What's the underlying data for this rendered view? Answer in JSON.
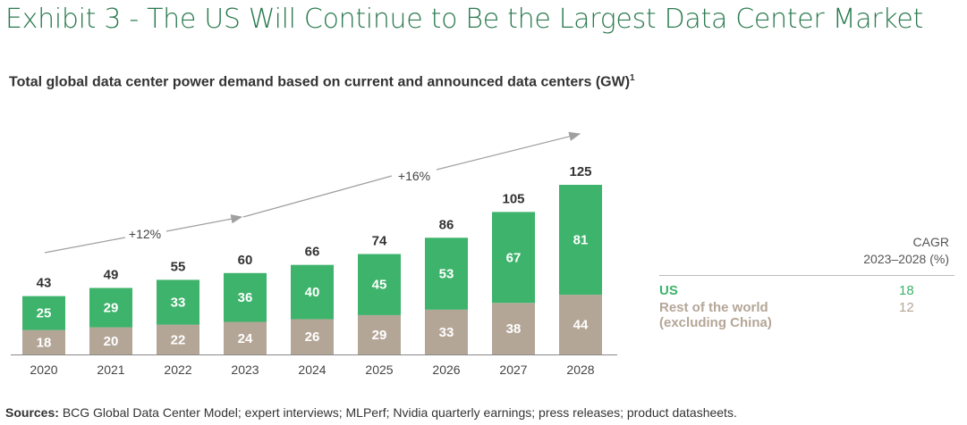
{
  "title": "Exhibit 3 - The US Will Continue to Be the Largest Data Center Market",
  "subtitle": "Total global data center power demand based on current and announced data centers (GW)",
  "subtitle_sup": "1",
  "sources_label": "Sources:",
  "sources_text": "BCG Global Data Center Model; expert interviews; MLPerf; Nvidia quarterly earnings; press releases; product datasheets.",
  "colors": {
    "us": "#3db36b",
    "row": "#b4a697",
    "title": "#2a7a4e",
    "arrow": "#a0a0a0"
  },
  "chart_data": {
    "type": "bar",
    "stacked": true,
    "categories": [
      "2020",
      "2021",
      "2022",
      "2023",
      "2024",
      "2025",
      "2026",
      "2027",
      "2028"
    ],
    "series": [
      {
        "name": "Rest of the world (excluding China)",
        "values": [
          18,
          20,
          22,
          24,
          26,
          29,
          33,
          38,
          44
        ]
      },
      {
        "name": "US",
        "values": [
          25,
          29,
          33,
          36,
          40,
          45,
          53,
          67,
          81
        ]
      }
    ],
    "totals": [
      43,
      49,
      55,
      60,
      66,
      74,
      86,
      105,
      125
    ],
    "annotations": [
      {
        "label": "+12%",
        "from": "2020",
        "to": "2023"
      },
      {
        "label": "+16%",
        "from": "2023",
        "to": "2028"
      }
    ],
    "ylim": [
      0,
      125
    ],
    "grid": false
  },
  "legend": {
    "header_line1": "CAGR",
    "header_line2": "2023–2028 (%)",
    "rows": [
      {
        "label": "US",
        "label2": "",
        "value": "18"
      },
      {
        "label": "Rest of the world",
        "label2": "(excluding China)",
        "value": "12"
      }
    ]
  }
}
